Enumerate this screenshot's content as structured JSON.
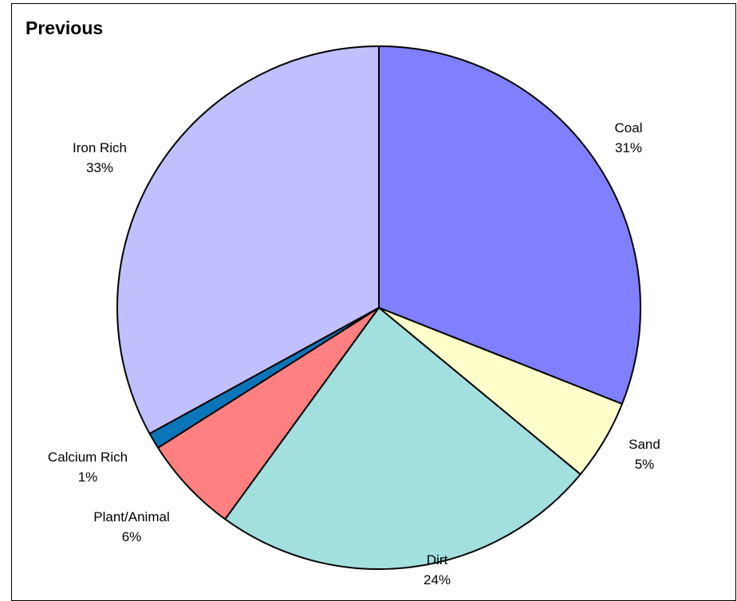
{
  "chart_data": {
    "type": "pie",
    "title": "Previous",
    "slices": [
      {
        "label": "Coal",
        "percent_label": "31%",
        "value": 31,
        "color": "#8080ff"
      },
      {
        "label": "Sand",
        "percent_label": "5%",
        "value": 5,
        "color": "#ffffcc"
      },
      {
        "label": "Dirt",
        "percent_label": "24%",
        "value": 24,
        "color": "#a2dfdf"
      },
      {
        "label": "Plant/Animal",
        "percent_label": "6%",
        "value": 6,
        "color": "#ff8080"
      },
      {
        "label": "Calcium Rich",
        "percent_label": "1%",
        "value": 1,
        "color": "#0a75b8"
      },
      {
        "label": "Iron Rich",
        "percent_label": "33%",
        "value": 33,
        "color": "#c0c0ff"
      }
    ],
    "start_angle_deg": 0,
    "direction": "clockwise",
    "legend": "none"
  }
}
